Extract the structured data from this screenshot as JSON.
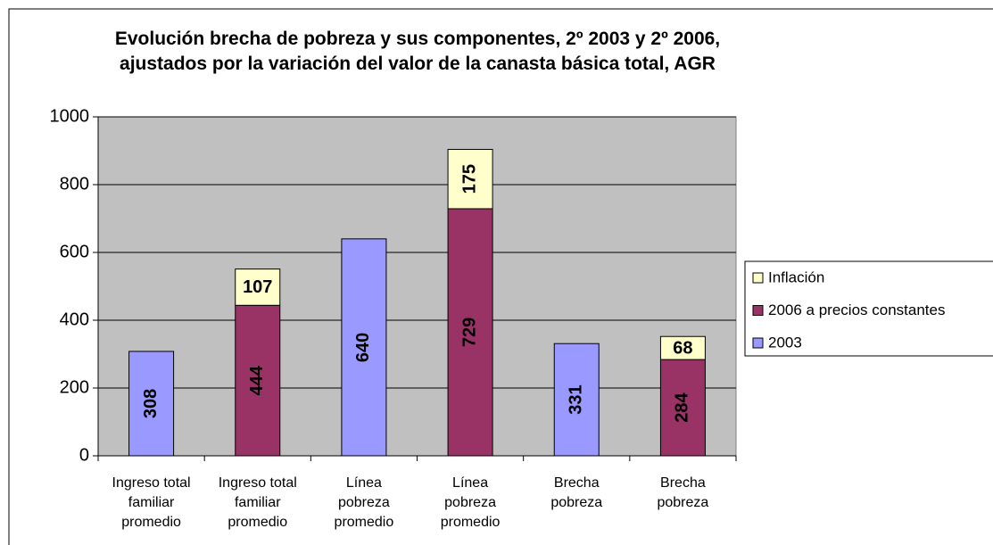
{
  "chart_data": {
    "type": "stacked-bar",
    "title": [
      "Evolución brecha de pobreza y sus componentes, 2º 2003 y 2º 2006,",
      "ajustados por la variación del valor de la canasta básica total, AGR"
    ],
    "categories": [
      "Ingreso total familiar promedio",
      "Ingreso total familiar promedio",
      "Línea pobreza promedio",
      "Línea pobreza promedio",
      "Brecha pobreza",
      "Brecha pobreza"
    ],
    "series": [
      {
        "name": "2003",
        "color": "#9999ff",
        "values": [
          308,
          null,
          640,
          null,
          331,
          null
        ]
      },
      {
        "name": "2006 a precios constantes",
        "color": "#993366",
        "values": [
          null,
          444,
          null,
          729,
          null,
          284
        ]
      },
      {
        "name": "Inflación",
        "color": "#ffffcc",
        "values": [
          null,
          107,
          null,
          175,
          null,
          68
        ]
      }
    ],
    "ylim": [
      0,
      1000
    ],
    "yticks": [
      0,
      200,
      400,
      600,
      800,
      1000
    ],
    "grid": true,
    "legend": "right"
  }
}
